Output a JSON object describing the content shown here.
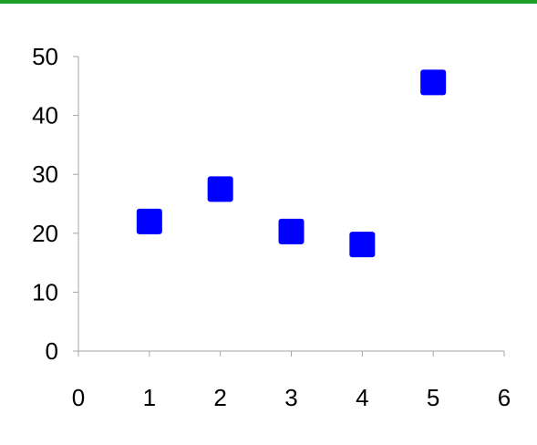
{
  "colors": {
    "top_bar": "#1e9e22",
    "marker": "#0000ff",
    "axis": "#a6a6a6"
  },
  "chart_data": {
    "type": "scatter",
    "title": "",
    "xlabel": "",
    "ylabel": "",
    "xlim": [
      0,
      6
    ],
    "ylim": [
      0,
      50
    ],
    "x_ticks": [
      0,
      1,
      2,
      3,
      4,
      5,
      6
    ],
    "y_ticks": [
      0,
      10,
      20,
      30,
      40,
      50
    ],
    "grid": false,
    "legend": "none",
    "marker": "square",
    "series": [
      {
        "x": [
          1,
          2,
          3,
          4,
          5
        ],
        "y": [
          22,
          27.5,
          20.3,
          18.1,
          45.6
        ]
      }
    ]
  }
}
